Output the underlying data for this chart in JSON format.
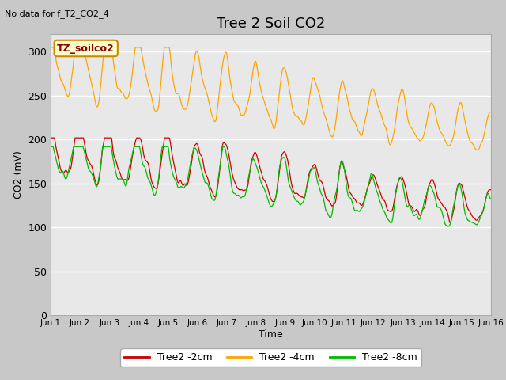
{
  "title": "Tree 2 Soil CO2",
  "subtitle": "No data for f_T2_CO2_4",
  "ylabel": "CO2 (mV)",
  "xlabel": "Time",
  "annotation_box": "TZ_soilco2",
  "ylim": [
    0,
    320
  ],
  "yticks": [
    0,
    50,
    100,
    150,
    200,
    250,
    300
  ],
  "fig_bg_color": "#c8c8c8",
  "plot_bg_color": "#e8e8e8",
  "legend": [
    "Tree2 -2cm",
    "Tree2 -4cm",
    "Tree2 -8cm"
  ],
  "legend_colors": [
    "#cc0000",
    "#ffa500",
    "#00bb00"
  ],
  "line_colors": [
    "#cc0000",
    "#ffa500",
    "#00bb00"
  ],
  "x_tick_labels": [
    "Jun 1",
    "Jun 2",
    "Jun 3",
    "Jun 4",
    "Jun 5",
    "Jun 6",
    "Jun 7",
    "Jun 8",
    "Jun 9",
    "Jun 10",
    "Jun 11",
    "Jun 12",
    "Jun 13",
    "Jun 14",
    "Jun 15",
    "Jun 16"
  ],
  "n_days": 15,
  "title_fontsize": 13,
  "label_fontsize": 9
}
